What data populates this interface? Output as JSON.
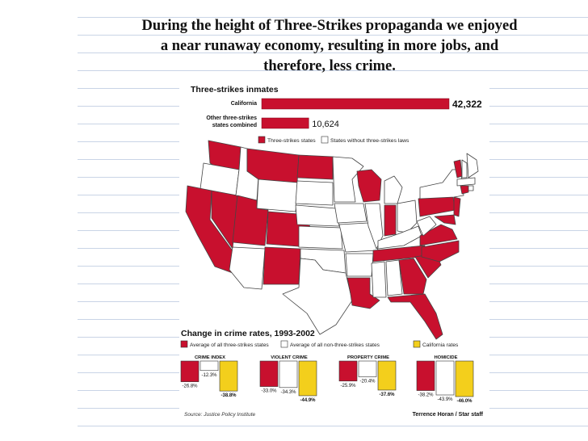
{
  "heading": {
    "line1": "During the height of Three-Strikes propaganda we enjoyed",
    "line2": "a near runaway economy, resulting in more jobs, and",
    "line3": "therefore, less crime."
  },
  "colors": {
    "red": "#c8102e",
    "yellow": "#f3cf1c",
    "white": "#ffffff",
    "outline": "#333333"
  },
  "chart_data": [
    {
      "type": "bar",
      "title": "Three-strikes inmates",
      "categories": [
        "California",
        "Other three-strikes states combined"
      ],
      "category_lines": [
        [
          "California"
        ],
        [
          "Other three-strikes",
          "states combined"
        ]
      ],
      "values": [
        42322,
        10624
      ],
      "value_labels": [
        "42,322",
        "10,624"
      ],
      "xlim": [
        0,
        42322
      ],
      "legend": [
        "Three-strikes states",
        "States without three-strikes laws"
      ]
    },
    {
      "type": "bar",
      "title": "Change in crime rates, 1993-2002",
      "legend": [
        "Average of all three-strikes states",
        "Average of all non-three-strikes states",
        "California rates"
      ],
      "categories": [
        "CRIME INDEX",
        "VIOLENT CRIME",
        "PROPERTY CRIME",
        "HOMICIDE"
      ],
      "series": [
        {
          "name": "Average of all three-strikes states",
          "values": [
            -26.8,
            -33.0,
            -25.9,
            -38.2
          ],
          "labels": [
            "-26.8%",
            "-33.0%",
            "-25.9%",
            "-38.2%"
          ]
        },
        {
          "name": "Average of all non-three-strikes states",
          "values": [
            -12.3,
            -34.3,
            -20.4,
            -43.9
          ],
          "labels": [
            "-12.3%",
            "-34.3%",
            "-20.4%",
            "-43.9%"
          ]
        },
        {
          "name": "California rates",
          "values": [
            -38.8,
            -44.9,
            -37.6,
            -46.0
          ],
          "labels": [
            "-38.8%",
            "-44.9%",
            "-37.6%",
            "-46.0%"
          ]
        }
      ],
      "ylim": [
        -46.0,
        0
      ],
      "source": "Source: Justice Policy Institute",
      "credit": "Terrence Horan / Star staff"
    }
  ]
}
